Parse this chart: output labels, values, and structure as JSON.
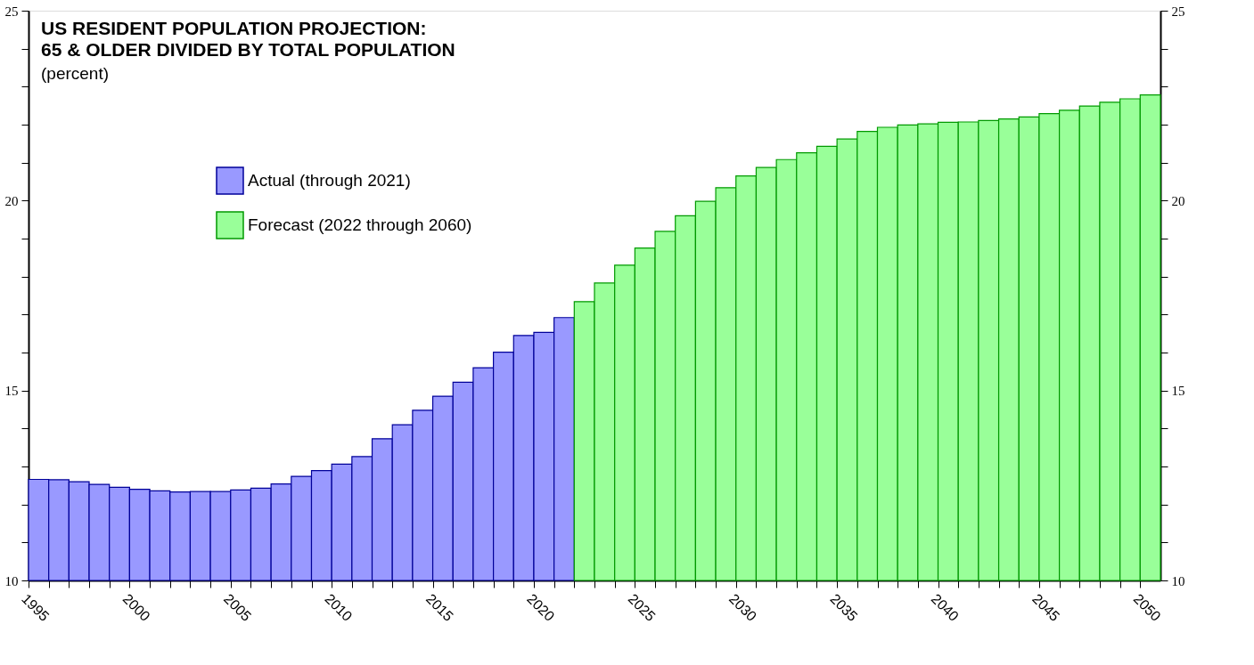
{
  "chart_data": {
    "type": "bar",
    "title": [
      "US RESIDENT POPULATION PROJECTION:",
      "65 & OLDER DIVIDED BY TOTAL POPULATION"
    ],
    "subtitle": "(percent)",
    "series": [
      {
        "name": "Actual (through 2021)",
        "color": "#9999ff",
        "x": [
          1995,
          1996,
          1997,
          1998,
          1999,
          2000,
          2001,
          2002,
          2003,
          2004,
          2005,
          2006,
          2007,
          2008,
          2009,
          2010,
          2011,
          2012,
          2013,
          2014,
          2015,
          2016,
          2017,
          2018,
          2019,
          2020,
          2021
        ],
        "values": [
          12.66,
          12.65,
          12.6,
          12.53,
          12.45,
          12.4,
          12.36,
          12.33,
          12.34,
          12.34,
          12.38,
          12.43,
          12.54,
          12.74,
          12.89,
          13.06,
          13.26,
          13.73,
          14.1,
          14.48,
          14.85,
          15.22,
          15.6,
          16.01,
          16.45,
          16.53,
          16.92
        ]
      },
      {
        "name": "Forecast (2022 through 2060)",
        "color": "#99ff99",
        "x": [
          2022,
          2023,
          2024,
          2025,
          2026,
          2027,
          2028,
          2029,
          2030,
          2031,
          2032,
          2033,
          2034,
          2035,
          2036,
          2037,
          2038,
          2039,
          2040,
          2041,
          2042,
          2043,
          2044,
          2045,
          2046,
          2047,
          2048,
          2049,
          2050
        ],
        "values": [
          17.34,
          17.83,
          18.3,
          18.75,
          19.19,
          19.6,
          19.98,
          20.34,
          20.65,
          20.87,
          21.08,
          21.26,
          21.43,
          21.62,
          21.82,
          21.93,
          21.99,
          22.02,
          22.06,
          22.07,
          22.11,
          22.15,
          22.2,
          22.29,
          22.38,
          22.49,
          22.59,
          22.68,
          22.78
        ]
      }
    ],
    "xlim": [
      1995,
      2051
    ],
    "xticks": [
      1995,
      {
        "value": 1996,
        "label": null
      },
      {
        "value": 1997,
        "label": null
      },
      {
        "value": 1998,
        "label": null
      },
      {
        "value": 1999,
        "label": null
      },
      2000,
      {
        "value": 2001,
        "label": null
      },
      {
        "value": 2002,
        "label": null
      },
      {
        "value": 2003,
        "label": null
      },
      {
        "value": 2004,
        "label": null
      },
      2005,
      {
        "value": 2006,
        "label": null
      },
      {
        "value": 2007,
        "label": null
      },
      {
        "value": 2008,
        "label": null
      },
      {
        "value": 2009,
        "label": null
      },
      2010,
      {
        "value": 2011,
        "label": null
      },
      {
        "value": 2012,
        "label": null
      },
      {
        "value": 2013,
        "label": null
      },
      {
        "value": 2014,
        "label": null
      },
      2015,
      {
        "value": 2016,
        "label": null
      },
      {
        "value": 2017,
        "label": null
      },
      {
        "value": 2018,
        "label": null
      },
      {
        "value": 2019,
        "label": null
      },
      2020,
      {
        "value": 2021,
        "label": null
      },
      {
        "value": 2022,
        "label": null
      },
      {
        "value": 2023,
        "label": null
      },
      {
        "value": 2024,
        "label": null
      },
      2025,
      {
        "value": 2026,
        "label": null
      },
      {
        "value": 2027,
        "label": null
      },
      {
        "value": 2028,
        "label": null
      },
      {
        "value": 2029,
        "label": null
      },
      2030,
      {
        "value": 2031,
        "label": null
      },
      {
        "value": 2032,
        "label": null
      },
      {
        "value": 2033,
        "label": null
      },
      {
        "value": 2034,
        "label": null
      },
      2035,
      {
        "value": 2036,
        "label": null
      },
      {
        "value": 2037,
        "label": null
      },
      {
        "value": 2038,
        "label": null
      },
      {
        "value": 2039,
        "label": null
      },
      2040,
      {
        "value": 2041,
        "label": null
      },
      {
        "value": 2042,
        "label": null
      },
      {
        "value": 2043,
        "label": null
      },
      {
        "value": 2044,
        "label": null
      },
      2045,
      {
        "value": 2046,
        "label": null
      },
      {
        "value": 2047,
        "label": null
      },
      {
        "value": 2048,
        "label": null
      },
      {
        "value": 2049,
        "label": null
      },
      2050
    ],
    "ylim": [
      10,
      25
    ],
    "yticks": [
      10,
      {
        "value": 11,
        "label": null
      },
      {
        "value": 12,
        "label": null
      },
      {
        "value": 13,
        "label": null
      },
      {
        "value": 14,
        "label": null
      },
      15,
      {
        "value": 16,
        "label": null
      },
      {
        "value": 17,
        "label": null
      },
      {
        "value": 18,
        "label": null
      },
      {
        "value": 19,
        "label": null
      },
      20,
      {
        "value": 21,
        "label": null
      },
      {
        "value": 22,
        "label": null
      },
      {
        "value": 23,
        "label": null
      },
      {
        "value": 24,
        "label": null
      },
      25
    ],
    "y2lim": [
      10,
      25
    ],
    "y2ticks": [
      10,
      {
        "value": 11,
        "label": null
      },
      {
        "value": 12,
        "label": null
      },
      {
        "value": 13,
        "label": null
      },
      {
        "value": 14,
        "label": null
      },
      15,
      {
        "value": 16,
        "label": null
      },
      {
        "value": 17,
        "label": null
      },
      {
        "value": 18,
        "label": null
      },
      {
        "value": 19,
        "label": null
      },
      20,
      {
        "value": 21,
        "label": null
      },
      {
        "value": 22,
        "label": null
      },
      {
        "value": 23,
        "label": null
      },
      {
        "value": 24,
        "label": null
      },
      25
    ],
    "legend": "top left",
    "grid": false
  }
}
